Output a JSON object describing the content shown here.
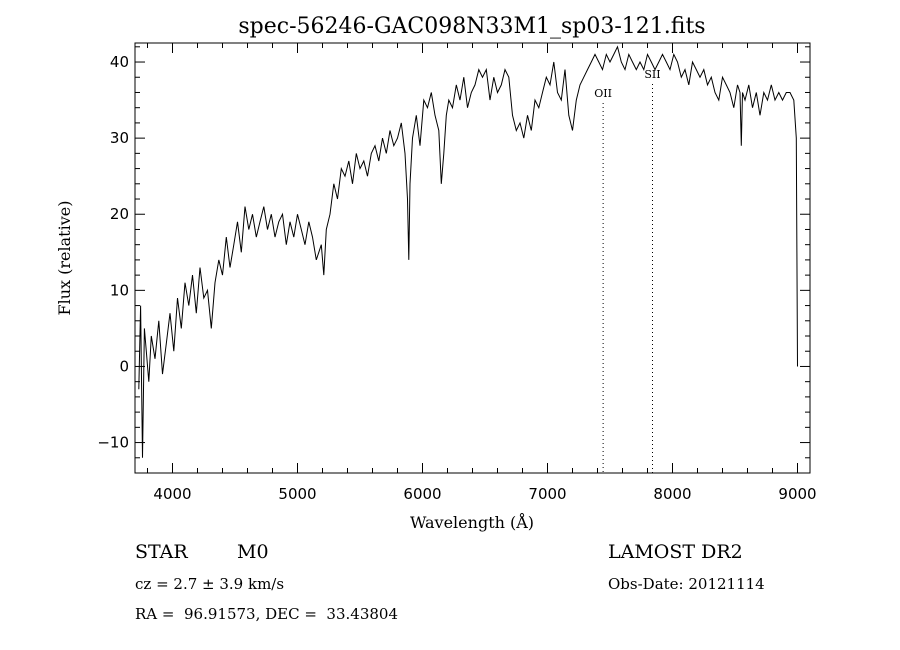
{
  "chart_data": {
    "type": "line",
    "title": "spec-56246-GAC098N33M1_sp03-121.fits",
    "xlabel": "Wavelength (Å)",
    "ylabel": "Flux (relative)",
    "xlim": [
      3700,
      9100
    ],
    "ylim": [
      -14,
      42.5
    ],
    "xticks": [
      4000,
      5000,
      6000,
      7000,
      8000,
      9000
    ],
    "yticks": [
      -10,
      0,
      10,
      20,
      30,
      40
    ],
    "grid": false,
    "line_color": "#000000",
    "series": [
      {
        "x": [
          3730,
          3745,
          3760,
          3775,
          3790,
          3810,
          3830,
          3860,
          3890,
          3920,
          3950,
          3980,
          4010,
          4040,
          4070,
          4100,
          4130,
          4160,
          4190,
          4220,
          4250,
          4280,
          4310,
          4340,
          4370,
          4400,
          4430,
          4460,
          4490,
          4520,
          4550,
          4580,
          4610,
          4640,
          4670,
          4700,
          4730,
          4760,
          4790,
          4820,
          4850,
          4880,
          4910,
          4940,
          4970,
          5000,
          5030,
          5060,
          5090,
          5120,
          5150,
          5170,
          5190,
          5210,
          5230,
          5260,
          5290,
          5320,
          5350,
          5380,
          5410,
          5440,
          5470,
          5500,
          5530,
          5560,
          5590,
          5620,
          5650,
          5680,
          5710,
          5740,
          5770,
          5800,
          5830,
          5860,
          5880,
          5890,
          5900,
          5920,
          5950,
          5980,
          6010,
          6040,
          6070,
          6100,
          6130,
          6150,
          6170,
          6190,
          6210,
          6240,
          6270,
          6300,
          6330,
          6360,
          6390,
          6420,
          6450,
          6480,
          6510,
          6540,
          6570,
          6600,
          6630,
          6660,
          6690,
          6720,
          6750,
          6780,
          6810,
          6840,
          6870,
          6900,
          6930,
          6960,
          6990,
          7020,
          7050,
          7080,
          7110,
          7140,
          7170,
          7200,
          7230,
          7260,
          7290,
          7320,
          7350,
          7380,
          7410,
          7440,
          7470,
          7500,
          7530,
          7560,
          7590,
          7620,
          7650,
          7680,
          7710,
          7740,
          7770,
          7800,
          7830,
          7860,
          7890,
          7920,
          7950,
          7980,
          8010,
          8040,
          8070,
          8100,
          8130,
          8160,
          8190,
          8220,
          8250,
          8280,
          8310,
          8340,
          8370,
          8400,
          8430,
          8460,
          8490,
          8520,
          8540,
          8550,
          8560,
          8580,
          8610,
          8640,
          8670,
          8700,
          8730,
          8760,
          8790,
          8820,
          8850,
          8880,
          8910,
          8940,
          8970,
          8990,
          8995,
          9000
        ],
        "y": [
          -3,
          8,
          -12,
          5,
          2,
          -2,
          4,
          1,
          6,
          -1,
          3,
          7,
          2,
          9,
          5,
          11,
          8,
          12,
          7,
          13,
          9,
          10,
          5,
          11,
          14,
          12,
          17,
          13,
          16,
          19,
          15,
          21,
          18,
          20,
          17,
          19,
          21,
          18,
          20,
          17,
          19,
          20,
          16,
          19,
          17,
          20,
          18,
          16,
          19,
          17,
          14,
          15,
          16,
          12,
          18,
          20,
          24,
          22,
          26,
          25,
          27,
          24,
          28,
          26,
          27,
          25,
          28,
          29,
          27,
          30,
          28,
          31,
          29,
          30,
          32,
          28,
          22,
          14,
          24,
          30,
          33,
          29,
          35,
          34,
          36,
          33,
          31,
          24,
          28,
          33,
          35,
          34,
          37,
          35,
          38,
          34,
          36,
          37,
          39,
          38,
          39,
          35,
          38,
          36,
          37,
          39,
          38,
          33,
          31,
          32,
          30,
          33,
          31,
          35,
          34,
          36,
          38,
          37,
          40,
          36,
          35,
          39,
          33,
          31,
          35,
          37,
          38,
          39,
          40,
          41,
          40,
          39,
          41,
          40,
          41,
          42,
          40,
          39,
          41,
          40,
          39,
          40,
          39,
          41,
          40,
          39,
          40,
          41,
          40,
          39,
          41,
          40,
          38,
          39,
          37,
          40,
          39,
          38,
          39,
          37,
          38,
          36,
          35,
          38,
          37,
          36,
          34,
          37,
          36,
          29,
          36,
          35,
          37,
          34,
          36,
          33,
          36,
          35,
          37,
          35,
          36,
          35,
          36,
          36,
          35,
          30,
          15,
          0
        ]
      }
    ],
    "annotations": [
      {
        "label": "OII",
        "x": 7445
      },
      {
        "label": "SII",
        "x": 7840
      }
    ]
  },
  "info": {
    "object_class": "STAR",
    "subclass": "M0",
    "survey": "LAMOST DR2",
    "cz": "cz = 2.7 ± 3.9 km/s",
    "obs_date": "Obs-Date: 20121114",
    "coords": "RA =  96.91573, DEC =  33.43804"
  }
}
